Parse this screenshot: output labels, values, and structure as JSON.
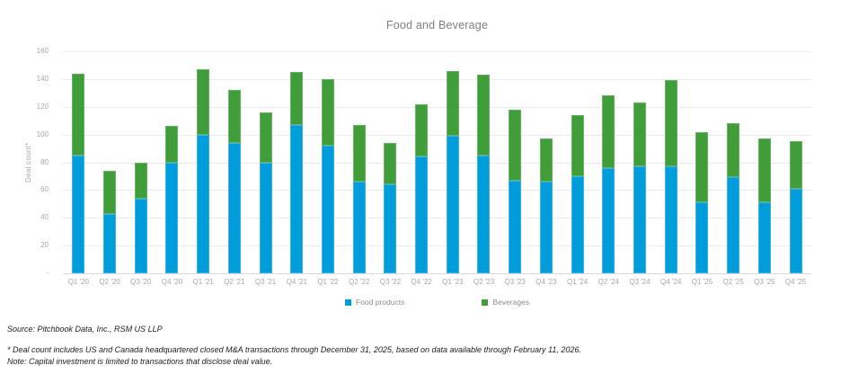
{
  "chart_data": {
    "type": "bar",
    "stacked": true,
    "title": "Food and Beverage",
    "ylabel": "Deal count*",
    "ylim": [
      0,
      160
    ],
    "grid": true,
    "legend_position": "bottom",
    "yticks": [
      {
        "label": "160",
        "value": 160
      },
      {
        "label": "140",
        "value": 140
      },
      {
        "label": "120",
        "value": 120
      },
      {
        "label": "100",
        "value": 100
      },
      {
        "label": "80",
        "value": 80
      },
      {
        "label": "60",
        "value": 60
      },
      {
        "label": "40",
        "value": 40
      },
      {
        "label": "20",
        "value": 20
      },
      {
        "label": "-",
        "value": 0
      }
    ],
    "categories": [
      "Q1 '20",
      "Q2 '20",
      "Q3 '20",
      "Q4 '20",
      "Q1 '21",
      "Q2 '21",
      "Q3 '21",
      "Q4 '21",
      "Q1 '22",
      "Q2 '22",
      "Q3 '22",
      "Q4 '22",
      "Q1 '23",
      "Q2 '23",
      "Q3 '23",
      "Q4 '23",
      "Q1 '24",
      "Q2 '24",
      "Q3 '24",
      "Q4 '24",
      "Q1 '25",
      "Q2 '25",
      "Q3 '25",
      "Q4 '25"
    ],
    "series": [
      {
        "name": "Food products",
        "color": "#009DDC",
        "values": [
          85,
          43,
          54,
          80,
          100,
          94,
          80,
          107,
          92,
          66,
          64,
          84,
          99,
          85,
          67,
          66,
          70,
          76,
          77,
          77,
          51,
          69,
          51,
          61
        ]
      },
      {
        "name": "Beverages",
        "color": "#3F9D3A",
        "values": [
          59,
          31,
          26,
          26,
          47,
          38,
          36,
          38,
          48,
          41,
          30,
          38,
          47,
          58,
          51,
          31,
          44,
          52,
          46,
          62,
          51,
          39,
          46,
          34
        ]
      }
    ],
    "totals": [
      144,
      74,
      80,
      106,
      147,
      132,
      116,
      145,
      140,
      107,
      94,
      122,
      146,
      143,
      118,
      97,
      114,
      128,
      123,
      139,
      102,
      108,
      97,
      95
    ]
  },
  "footer": {
    "source": "Source: Pitchbook Data, Inc., RSM US LLP",
    "footnote": "* Deal count includes US and Canada headquartered closed M&A transactions through December 31, 2025, based on data available through February 11, 2026.",
    "note": "Note: Capital investment is limited to transactions that disclose deal value."
  },
  "colors": {
    "axis_text": "#A6A6A6",
    "title_text": "#7F7F7F",
    "gridline": "#EBEBEB",
    "baseline": "#D9D9D9"
  }
}
